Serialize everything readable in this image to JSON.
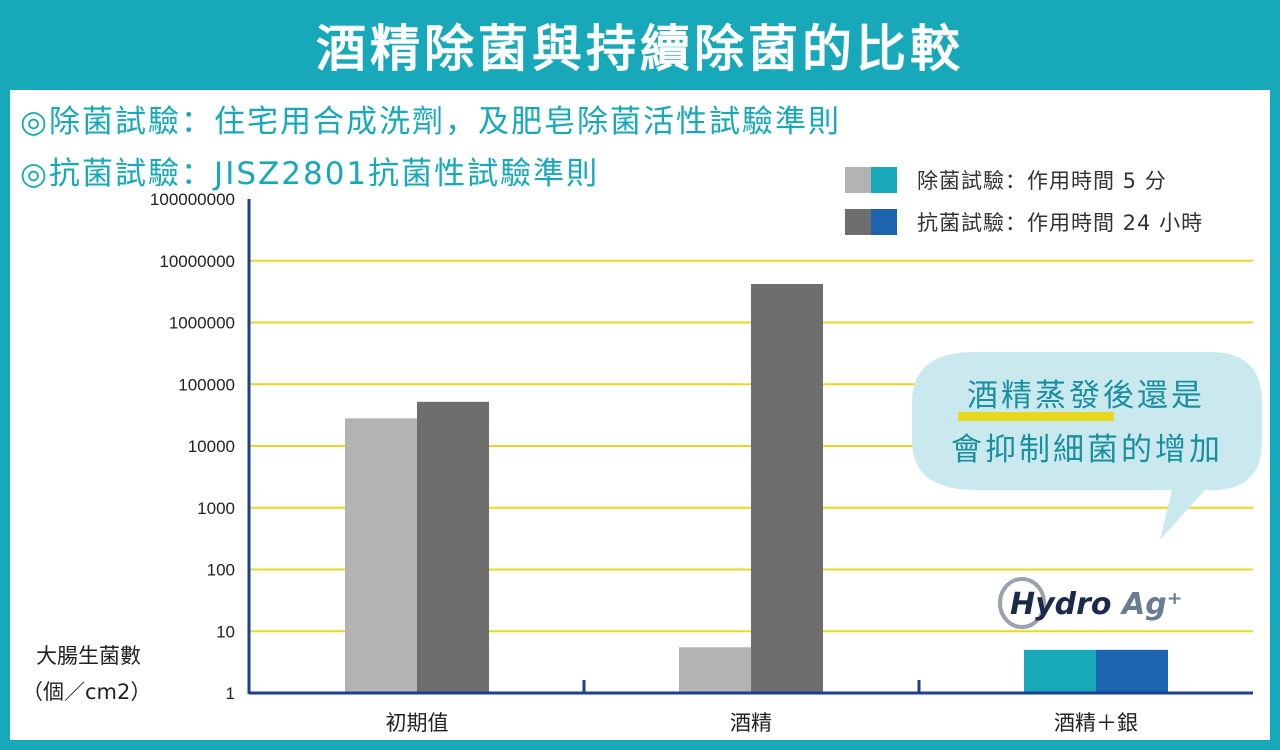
{
  "title": "酒精除菌與持續除菌的比較",
  "notes": [
    "◎除菌試驗：住宅用合成洗劑，及肥皂除菌活性試驗準則",
    "◎抗菌試驗：JISZ2801抗菌性試驗準則"
  ],
  "legend": [
    {
      "label": "除菌試驗：作用時間 5 分",
      "colors": [
        "#b3b3b3",
        "#17a9b9"
      ]
    },
    {
      "label": "抗菌試驗：作用時間 24 小時",
      "colors": [
        "#6e6e6e",
        "#1c63b0"
      ]
    }
  ],
  "y_axis_label_line1": "大腸生菌數",
  "y_axis_label_line2": "（個／cm2）",
  "bubble": {
    "line1": "酒精蒸發後還是",
    "line2": "會抑制細菌的增加"
  },
  "logo": {
    "main": "Hydro",
    "accent": "Ag⁺"
  },
  "colors": {
    "background": "#17a9b9",
    "gridline": "#e8d81e",
    "axis": "#1c3f8f",
    "bubble": "#c9e9ef"
  },
  "chart_data": {
    "type": "bar",
    "y_scale": "log",
    "ylim": [
      1,
      100000000
    ],
    "ylabel": "大腸生菌數（個／cm2）",
    "xlabel": "",
    "y_ticks": [
      {
        "value": 100000000,
        "label": "100000000"
      },
      {
        "value": 10000000,
        "label": "10000000"
      },
      {
        "value": 1000000,
        "label": "1000000"
      },
      {
        "value": 100000,
        "label": "100000"
      },
      {
        "value": 10000,
        "label": "10000"
      },
      {
        "value": 1000,
        "label": "1000"
      },
      {
        "value": 100,
        "label": "100"
      },
      {
        "value": 10,
        "label": "10"
      },
      {
        "value": 1,
        "label": "1"
      }
    ],
    "categories": [
      "初期值",
      "酒精",
      "酒精＋銀"
    ],
    "series": [
      {
        "name": "除菌試驗：作用時間 5 分",
        "values": [
          28000,
          5.5,
          5
        ],
        "colors": [
          "#b3b3b3",
          "#b3b3b3",
          "#17a9b9"
        ]
      },
      {
        "name": "抗菌試驗：作用時間 24 小時",
        "values": [
          52000,
          4200000,
          5
        ],
        "colors": [
          "#6e6e6e",
          "#6e6e6e",
          "#1c63b0"
        ]
      }
    ],
    "grid": true
  }
}
